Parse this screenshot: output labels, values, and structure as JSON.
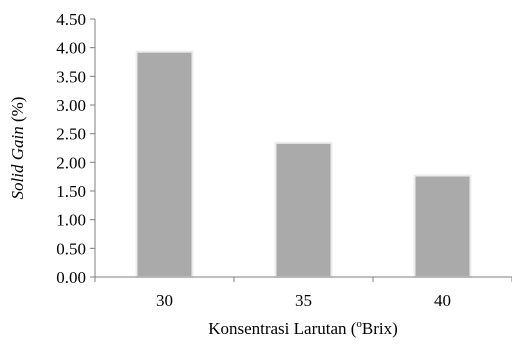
{
  "chart_data": {
    "type": "bar",
    "categories": [
      "30",
      "35",
      "40"
    ],
    "values": [
      3.93,
      2.34,
      1.77
    ],
    "ylim": [
      0,
      4.5
    ],
    "yticks": [
      "0.00",
      "0.50",
      "1.00",
      "1.50",
      "2.00",
      "2.50",
      "3.00",
      "3.50",
      "4.00",
      "4.50"
    ],
    "xlabel": {
      "main": "Konsentrasi Larutan (",
      "sup": "o",
      "tail": "Brix)"
    },
    "ylabel": {
      "italic": "Solid Gain",
      "tail": " (%)"
    },
    "bar_color": "#aaaaaa",
    "grid": false,
    "legend": "none"
  }
}
